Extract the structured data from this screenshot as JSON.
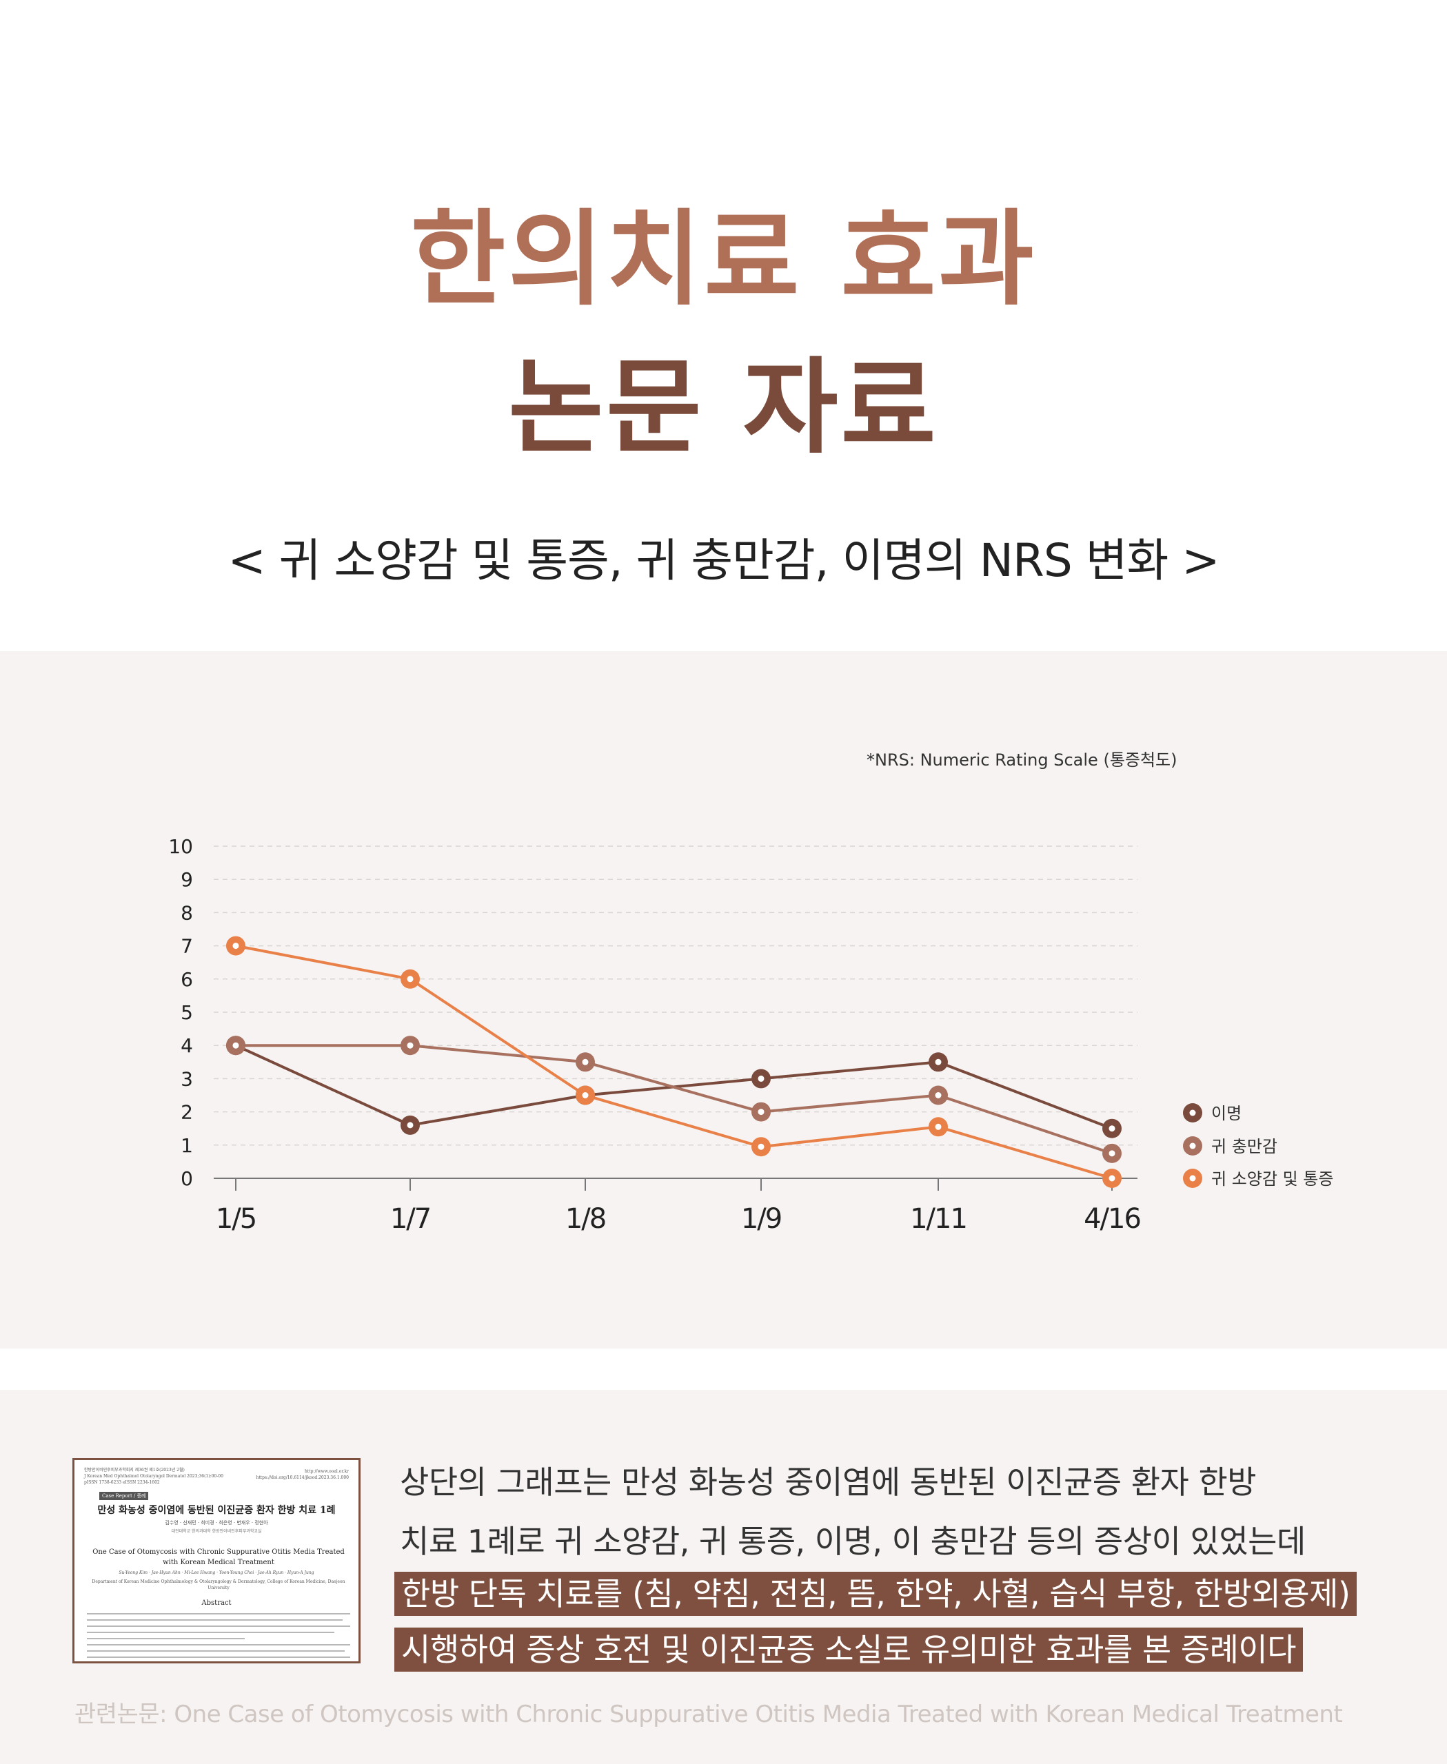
{
  "title": {
    "line1": "한의치료 효과",
    "line2": "논문 자료",
    "line1_color": "#b06f57",
    "line2_color": "#7a4a3a"
  },
  "subtitle": "< 귀 소양감 및 통증, 귀 충만감, 이명의 NRS 변화 >",
  "footnote": "*NRS: Numeric Rating Scale (통증척도)",
  "chart_data": {
    "type": "line",
    "categories": [
      "1/5",
      "1/7",
      "1/8",
      "1/9",
      "1/11",
      "4/16"
    ],
    "ylim": [
      0,
      10
    ],
    "yticks": [
      0,
      1,
      2,
      3,
      4,
      5,
      6,
      7,
      8,
      9,
      10
    ],
    "grid": true,
    "legend_position": "right",
    "series": [
      {
        "name": "이명",
        "color": "#7a4b3c",
        "values": [
          4,
          1.6,
          2.5,
          3,
          3.5,
          1.5
        ]
      },
      {
        "name": "귀 충만감",
        "color": "#a8705e",
        "values": [
          4,
          4,
          3.5,
          2,
          2.5,
          0.75
        ]
      },
      {
        "name": "귀 소양감 및 통증",
        "color": "#e88048",
        "values": [
          7,
          6,
          2.5,
          0.95,
          1.55,
          0
        ]
      }
    ]
  },
  "paper": {
    "header": "한방안이비인후피부과학회지 제36권 제1호(2023년 2월)\nJ Korean Med Ophthalmol Otolaryngol Dermatol 2023;36(1):00-00\npISSN 1738-6233 eISSN 2234-1602",
    "doi": "http://www.ooal.or.kr\nhttps://doi.org/10.6114/jkood.2023.36.1.000",
    "tag": "Case Report / 증례",
    "ko_title": "만성 화농성 중이염에 동반된 이진균증 환자 한방 치료 1례",
    "ko_authors": "김수영 · 신재민 · 최미경 · 최은영 · 변재우 · 정현아",
    "ko_affil": "대전대학교 한의과대학 한방안이비인후피부과학교실",
    "en_title": "One Case of Otomycosis with Chronic Suppurative Otitis Media Treated with Korean Medical Treatment",
    "en_authors": "Su-Yeong Kim · Jae-Hyun Ahn · Mi-Lee Hwang · Yoon-Young Choi · Jae-Ah Ryun · Hyun-A Jung",
    "en_affil": "Department of Korean Medicine Ophthalmology & Otolaryngology & Dermatology, College of Korean Medicine, Daejeon University",
    "abstract_heading": "Abstract"
  },
  "description": {
    "line1": "상단의 그래프는 만성 화농성 중이염에 동반된 이진균증 환자 한방",
    "line2": "치료 1례로 귀 소양감, 귀 통증, 이명, 이 충만감 등의 증상이 있었는데",
    "highlight1": "한방 단독 치료를 (침, 약침, 전침, 뜸, 한약, 사혈, 습식 부항, 한방외용제)",
    "highlight2": "시행하여 증상 호전 및 이진균증 소실로 유의미한 효과를 본 증례이다",
    "highlight_color": "#7f5040"
  },
  "reference": "관련논문: One Case of Otomycosis with Chronic Suppurative Otitis Media Treated with Korean Medical Treatment"
}
